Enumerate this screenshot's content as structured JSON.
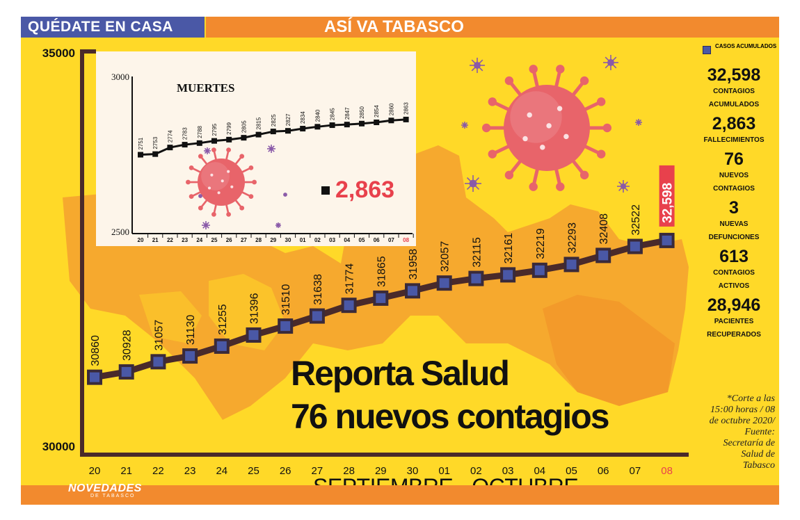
{
  "header": {
    "left": "QUÉDATE EN CASA",
    "right": "ASÍ VA TABASCO"
  },
  "headline": {
    "line1": "Reporta Salud",
    "line2": "76 nuevos contagios"
  },
  "brand": {
    "name": "NOVEDADES",
    "sub": "DE TABASCO"
  },
  "legend": {
    "label": "CASOS ACUMULADOS"
  },
  "stats": [
    {
      "value": "32,598",
      "label1": "CONTAGIOS",
      "label2": "ACUMULADOS"
    },
    {
      "value": "2,863",
      "label1": "FALLECIMIENTOS",
      "label2": ""
    },
    {
      "value": "76",
      "label1": "NUEVOS",
      "label2": "CONTAGIOS"
    },
    {
      "value": "3",
      "label1": "NUEVAS",
      "label2": "DEFUNCIONES"
    },
    {
      "value": "613",
      "label1": "CONTAGIOS",
      "label2": "ACTIVOS"
    },
    {
      "value": "28,946",
      "label1": "PACIENTES",
      "label2": "RECUPERADOS"
    }
  ],
  "note": "*Corte a las 15:00 horas / 08 de octubre 2020/ Fuente: Secretaría de Salud de Tabasco",
  "colors": {
    "background": "#ffd928",
    "banner_blue": "#4a58a6",
    "banner_orange": "#f28a2e",
    "line": "#4a2a2a",
    "marker": "#4a58a6",
    "highlight": "#e8414c",
    "virus": "#e8646a"
  },
  "chart_data": [
    {
      "type": "line",
      "title": "",
      "xlabel": "SEPTIEMBRE - OCTUBRE",
      "ylabel": "",
      "ylim": [
        30000,
        35000
      ],
      "yticks": [
        "35000",
        "30000"
      ],
      "categories": [
        "20",
        "21",
        "22",
        "23",
        "24",
        "25",
        "26",
        "27",
        "28",
        "29",
        "30",
        "01",
        "02",
        "03",
        "04",
        "05",
        "06",
        "07",
        "08"
      ],
      "values": [
        30860,
        30928,
        31057,
        31130,
        31255,
        31396,
        31510,
        31638,
        31774,
        31865,
        31958,
        32057,
        32115,
        32161,
        32219,
        32293,
        32408,
        32522,
        32598
      ],
      "highlight_label": "32,598",
      "grid": false
    },
    {
      "type": "line",
      "title": "MUERTES",
      "xlabel": "",
      "ylabel": "",
      "ylim": [
        2500,
        3000
      ],
      "yticks": [
        "3000",
        "2500"
      ],
      "categories": [
        "20",
        "21",
        "22",
        "23",
        "24",
        "25",
        "26",
        "27",
        "28",
        "29",
        "30",
        "01",
        "02",
        "03",
        "04",
        "05",
        "06",
        "07",
        "08"
      ],
      "values": [
        2751,
        2753,
        2774,
        2783,
        2788,
        2795,
        2799,
        2805,
        2815,
        2825,
        2827,
        2834,
        2840,
        2845,
        2847,
        2850,
        2854,
        2860,
        2863
      ],
      "highlight_label": "2,863",
      "grid": false
    }
  ]
}
